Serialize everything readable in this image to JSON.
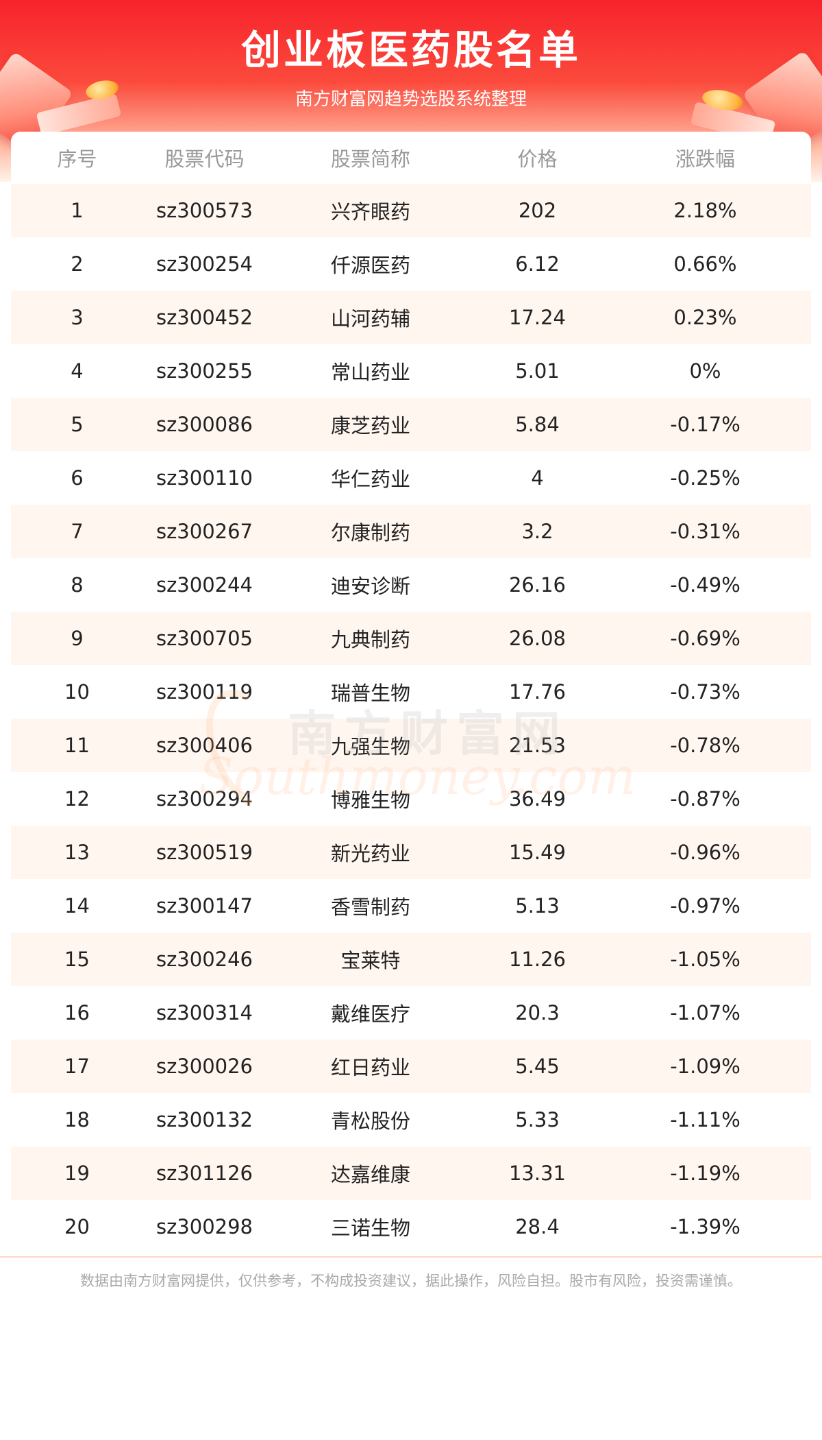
{
  "header": {
    "title": "创业板医药股名单",
    "subtitle": "南方财富网趋势选股系统整理"
  },
  "table": {
    "columns": [
      "序号",
      "股票代码",
      "股票简称",
      "价格",
      "涨跌幅"
    ],
    "rows": [
      [
        "1",
        "sz300573",
        "兴齐眼药",
        "202",
        "2.18%"
      ],
      [
        "2",
        "sz300254",
        "仟源医药",
        "6.12",
        "0.66%"
      ],
      [
        "3",
        "sz300452",
        "山河药辅",
        "17.24",
        "0.23%"
      ],
      [
        "4",
        "sz300255",
        "常山药业",
        "5.01",
        "0%"
      ],
      [
        "5",
        "sz300086",
        "康芝药业",
        "5.84",
        "-0.17%"
      ],
      [
        "6",
        "sz300110",
        "华仁药业",
        "4",
        "-0.25%"
      ],
      [
        "7",
        "sz300267",
        "尔康制药",
        "3.2",
        "-0.31%"
      ],
      [
        "8",
        "sz300244",
        "迪安诊断",
        "26.16",
        "-0.49%"
      ],
      [
        "9",
        "sz300705",
        "九典制药",
        "26.08",
        "-0.69%"
      ],
      [
        "10",
        "sz300119",
        "瑞普生物",
        "17.76",
        "-0.73%"
      ],
      [
        "11",
        "sz300406",
        "九强生物",
        "21.53",
        "-0.78%"
      ],
      [
        "12",
        "sz300294",
        "博雅生物",
        "36.49",
        "-0.87%"
      ],
      [
        "13",
        "sz300519",
        "新光药业",
        "15.49",
        "-0.96%"
      ],
      [
        "14",
        "sz300147",
        "香雪制药",
        "5.13",
        "-0.97%"
      ],
      [
        "15",
        "sz300246",
        "宝莱特",
        "11.26",
        "-1.05%"
      ],
      [
        "16",
        "sz300314",
        "戴维医疗",
        "20.3",
        "-1.07%"
      ],
      [
        "17",
        "sz300026",
        "红日药业",
        "5.45",
        "-1.09%"
      ],
      [
        "18",
        "sz300132",
        "青松股份",
        "5.33",
        "-1.11%"
      ],
      [
        "19",
        "sz301126",
        "达嘉维康",
        "13.31",
        "-1.19%"
      ],
      [
        "20",
        "sz300298",
        "三诺生物",
        "28.4",
        "-1.39%"
      ]
    ]
  },
  "watermark": {
    "cn": "南方财富网",
    "en": "Southmoney.com"
  },
  "footer": {
    "disclaimer": "数据由南方财富网提供，仅供参考，不构成投资建议，据此操作，风险自担。股市有风险，投资需谨慎。"
  },
  "colors": {
    "banner_red": "#f7232b",
    "row_stripe": "#fff6f0",
    "header_text": "#999999",
    "body_text": "#222222",
    "footer_text": "#aaaaaa"
  }
}
